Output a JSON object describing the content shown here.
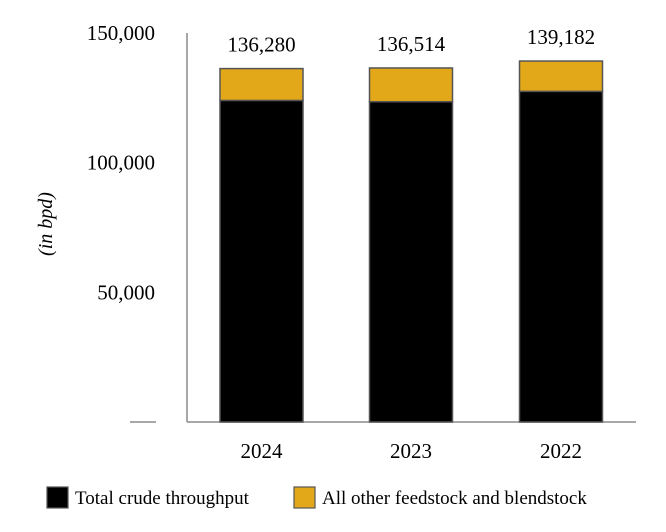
{
  "chart_data": {
    "type": "bar",
    "stacked": true,
    "title": "",
    "xlabel": "",
    "ylabel": "(in bpd)",
    "ylim": [
      0,
      150000
    ],
    "yticks": [
      50000,
      100000,
      150000
    ],
    "ytick_labels": [
      "50,000",
      "100,000",
      "150,000"
    ],
    "grid": false,
    "legend_position": "bottom",
    "categories": [
      "2024",
      "2023",
      "2022"
    ],
    "series": [
      {
        "name": "Total crude throughput",
        "color": "#000000",
        "values": [
          124000,
          123500,
          127500
        ]
      },
      {
        "name": "All other feedstock and blendstock",
        "color": "#e3a81a",
        "values": [
          12280,
          13014,
          11682
        ]
      }
    ],
    "totals": [
      136280,
      136514,
      139182
    ],
    "total_labels": [
      "136,280",
      "136,514",
      "139,182"
    ]
  }
}
